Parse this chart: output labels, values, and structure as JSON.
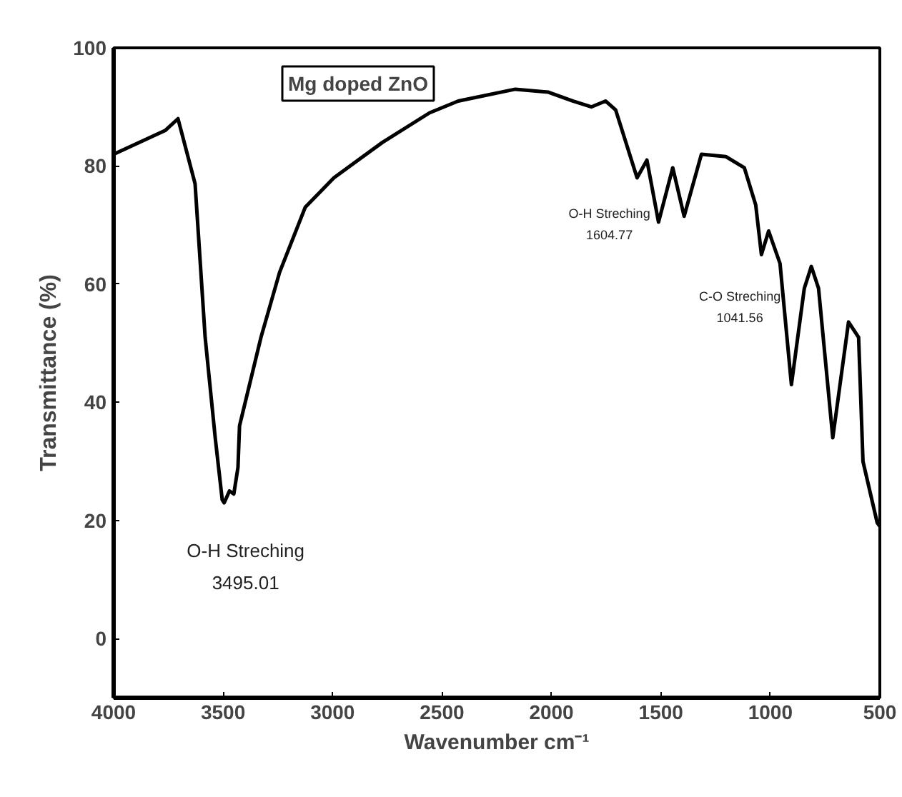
{
  "chart_data": {
    "type": "line",
    "title": "Mg doped ZnO",
    "xlabel": "Wavenumber cm⁻¹",
    "ylabel": "Transmittance (%)",
    "series": [
      {
        "color": "#000000",
        "x": [
          4000,
          3765,
          3706,
          3628,
          3582,
          3536,
          3504,
          3495,
          3471,
          3451,
          3432,
          3425,
          3327,
          3242,
          3125,
          2994,
          2772,
          2557,
          2426,
          2165,
          2014,
          1903,
          1818,
          1753,
          1707,
          1609,
          1564,
          1511,
          1446,
          1394,
          1315,
          1204,
          1119,
          1067,
          1041,
          1008,
          956,
          904,
          845,
          813,
          780,
          715,
          643,
          597,
          577,
          512,
          500
        ],
        "values": [
          82,
          86,
          88,
          77,
          51,
          34,
          23.5,
          23,
          25,
          24.5,
          29,
          36,
          51,
          62,
          73,
          78,
          84,
          89,
          91,
          93,
          92.5,
          91,
          90,
          91,
          89.5,
          78,
          81,
          70.5,
          79.7,
          71.5,
          82,
          81.6,
          79.7,
          73.4,
          65,
          69,
          63.5,
          43,
          59.3,
          63,
          59.3,
          34,
          53.6,
          51,
          30,
          19.6,
          19
        ]
      }
    ],
    "annotations": [
      {
        "text": "O-H Streching\n3495.01",
        "x": 3495,
        "y": 23
      },
      {
        "text": "O-H Streching\n1604.77",
        "x": 1604.77,
        "y": 78
      },
      {
        "text": "C-O Streching\n1041.56",
        "x": 1041.56,
        "y": 65
      }
    ],
    "xlim": [
      4000,
      500
    ],
    "xticks": [
      4000,
      3500,
      3000,
      2500,
      2000,
      1500,
      1000,
      500
    ],
    "ylim": [
      -10,
      100
    ],
    "yticks": [
      0,
      20,
      40,
      60,
      80,
      100
    ],
    "grid": false,
    "marker": "none",
    "line_style": "solid"
  }
}
